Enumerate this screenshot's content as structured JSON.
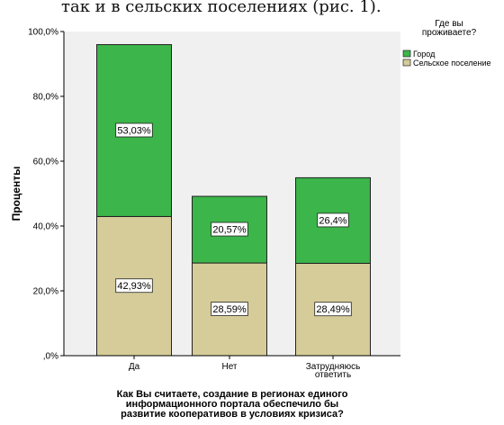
{
  "caption_fragment": "так и в сельских поселениях (рис. 1).",
  "chart_data": {
    "type": "bar",
    "stacked": true,
    "categories": [
      "Да",
      "Нет",
      "Затрудняюсь ответить"
    ],
    "category_lines": [
      [
        "Да"
      ],
      [
        "Нет"
      ],
      [
        "Затрудняюсь",
        "ответить"
      ]
    ],
    "series": [
      {
        "name": "Сельское поселение",
        "values": [
          42.93,
          28.59,
          28.49
        ],
        "labels": [
          "42,93%",
          "28,59%",
          "28,49%"
        ],
        "color": "#d6cc99"
      },
      {
        "name": "Город",
        "values": [
          53.03,
          20.57,
          26.4
        ],
        "labels": [
          "53,03%",
          "20,57%",
          "26,4%"
        ],
        "color": "#3cb54a"
      }
    ],
    "ylabel": "Проценты",
    "xlabel_lines": [
      "Как Вы считаете, создание в регионах единого",
      "информационного портала обеспечило бы",
      "развитие кооперативов в условиях кризиса?"
    ],
    "ylim": [
      0,
      100
    ],
    "yticks": [
      0,
      20,
      40,
      60,
      80,
      100
    ],
    "ytick_labels": [
      ",0%",
      "20,0%",
      "40,0%",
      "60,0%",
      "80,0%",
      "100,0%"
    ],
    "grid": false,
    "legend": {
      "position": "top-right",
      "title_lines": [
        "Где вы",
        "проживаете?"
      ],
      "entries": [
        {
          "name": "Город",
          "color": "#3cb54a"
        },
        {
          "name": "Сельское поселение",
          "color": "#d6cc99"
        }
      ]
    }
  }
}
